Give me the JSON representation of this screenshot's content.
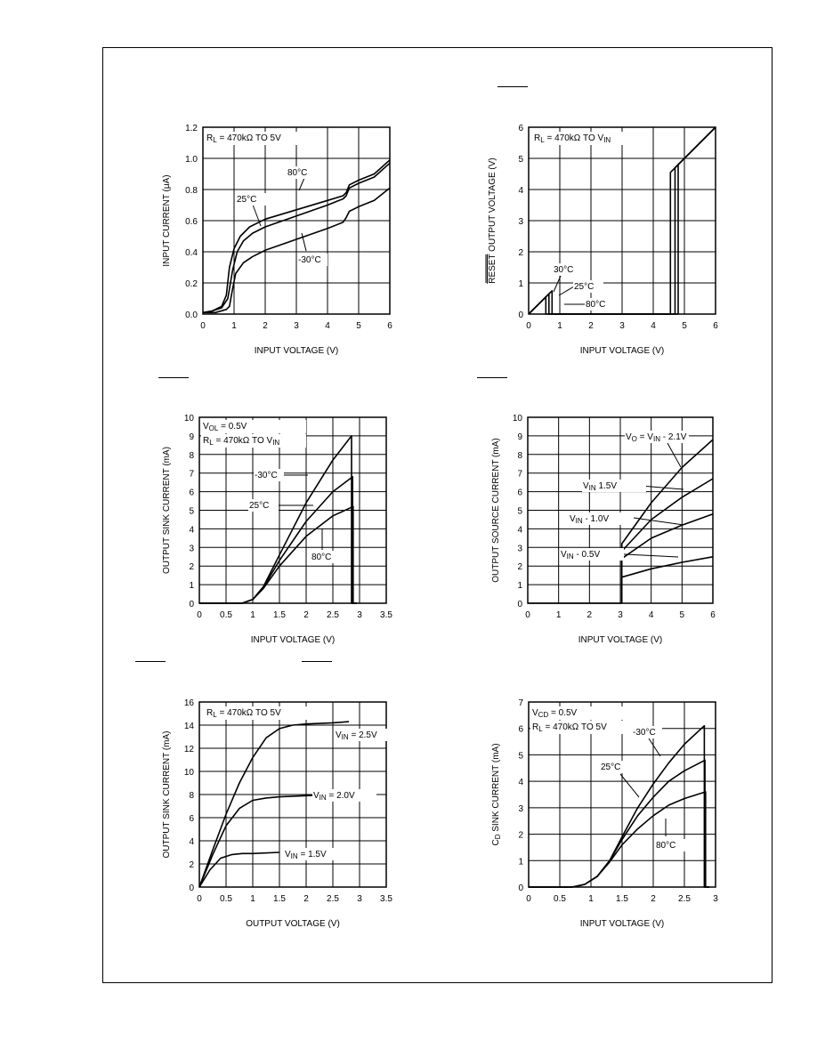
{
  "chart_data": [
    {
      "type": "line",
      "annotation": [
        "R",
        "L",
        " = 470kΩ TO 5V"
      ],
      "xlabel": "INPUT VOLTAGE (V)",
      "ylabel": "INPUT CURRENT (μA)",
      "xlim": [
        0,
        6
      ],
      "ylim": [
        0,
        1.2
      ],
      "xticks": [
        "0",
        "1",
        "2",
        "3",
        "4",
        "5",
        "6"
      ],
      "yticks": [
        "0.0",
        "0.2",
        "0.4",
        "0.6",
        "0.8",
        "1.0",
        "1.2"
      ],
      "grid": true,
      "series": [
        {
          "name": "25°C",
          "x": [
            0,
            0.3,
            0.6,
            0.75,
            0.85,
            1.0,
            1.2,
            1.5,
            2.0,
            3.0,
            4.0,
            4.5,
            4.6,
            4.7,
            5.0,
            5.5,
            6.0
          ],
          "y": [
            0.01,
            0.02,
            0.05,
            0.12,
            0.3,
            0.42,
            0.5,
            0.56,
            0.61,
            0.67,
            0.73,
            0.76,
            0.78,
            0.83,
            0.86,
            0.9,
            0.99
          ]
        },
        {
          "name": "80°C",
          "x": [
            0,
            0.3,
            0.6,
            0.8,
            0.95,
            1.1,
            1.3,
            1.6,
            2.0,
            3.0,
            4.0,
            4.5,
            4.6,
            4.7,
            5.0,
            5.5,
            6.0
          ],
          "y": [
            0.01,
            0.02,
            0.04,
            0.1,
            0.28,
            0.4,
            0.47,
            0.52,
            0.56,
            0.63,
            0.7,
            0.74,
            0.76,
            0.81,
            0.84,
            0.88,
            0.97
          ]
        },
        {
          "name": "-30°C",
          "x": [
            0,
            0.4,
            0.75,
            0.85,
            0.95,
            1.05,
            1.3,
            1.6,
            2.0,
            3.0,
            4.0,
            4.5,
            4.6,
            4.7,
            5.0,
            5.5,
            6.0
          ],
          "y": [
            0.01,
            0.01,
            0.03,
            0.05,
            0.16,
            0.26,
            0.33,
            0.37,
            0.41,
            0.48,
            0.55,
            0.59,
            0.62,
            0.66,
            0.69,
            0.73,
            0.81
          ]
        }
      ],
      "labels": [
        "80°C",
        "25°C",
        "-30°C"
      ]
    },
    {
      "type": "line",
      "annotation": [
        "R",
        "L",
        " = 470kΩ TO V",
        "IN"
      ],
      "xlabel": "INPUT VOLTAGE (V)",
      "ylabel": "RESET OUTPUT VOLTAGE (V)",
      "xlim": [
        0,
        6
      ],
      "ylim": [
        0,
        6
      ],
      "xticks": [
        "0",
        "1",
        "2",
        "3",
        "4",
        "5",
        "6"
      ],
      "yticks": [
        "0",
        "1",
        "2",
        "3",
        "4",
        "5",
        "6"
      ],
      "grid": true,
      "series": [
        {
          "name": "30°C",
          "x": [
            0,
            0.55,
            0.55,
            4.55,
            4.55,
            6
          ],
          "y": [
            0,
            0.55,
            0,
            0,
            4.55,
            6
          ]
        },
        {
          "name": "25°C",
          "x": [
            0,
            0.65,
            0.65,
            4.7,
            4.7,
            6
          ],
          "y": [
            0,
            0.65,
            0,
            0,
            4.7,
            6
          ]
        },
        {
          "name": "80°C",
          "x": [
            0,
            0.75,
            0.75,
            4.8,
            4.8,
            6
          ],
          "y": [
            0,
            0.75,
            0,
            0,
            4.8,
            6
          ]
        }
      ],
      "labels": [
        "30°C",
        "25°C",
        "80°C"
      ]
    },
    {
      "type": "line",
      "annotation": [
        "V",
        "OL",
        " = 0.5V",
        "R",
        "L",
        " = 470kΩ TO V",
        "IN"
      ],
      "xlabel": "INPUT VOLTAGE (V)",
      "ylabel": "OUTPUT SINK CURRENT (mA)",
      "xlim": [
        0,
        3.5
      ],
      "ylim": [
        0,
        10
      ],
      "xticks": [
        "0",
        "0.5",
        "1",
        "1.5",
        "2",
        "2.5",
        "3",
        "3.5"
      ],
      "yticks": [
        "0",
        "1",
        "2",
        "3",
        "4",
        "5",
        "6",
        "7",
        "8",
        "9",
        "10"
      ],
      "grid": true,
      "series": [
        {
          "name": "-30°C",
          "x": [
            0,
            0.8,
            1.0,
            1.2,
            1.5,
            2.0,
            2.5,
            2.85,
            2.85,
            2.9
          ],
          "y": [
            0,
            0,
            0.2,
            0.9,
            2.6,
            5.4,
            7.7,
            9.0,
            0,
            0
          ]
        },
        {
          "name": "25°C",
          "x": [
            0,
            0.8,
            1.0,
            1.2,
            1.5,
            2.0,
            2.5,
            2.87,
            2.87,
            2.95
          ],
          "y": [
            0,
            0,
            0.2,
            0.85,
            2.3,
            4.4,
            6.0,
            6.8,
            0,
            0
          ]
        },
        {
          "name": "80°C",
          "x": [
            0,
            0.8,
            1.0,
            1.2,
            1.5,
            2.0,
            2.5,
            2.88,
            2.88,
            2.95
          ],
          "y": [
            0,
            0,
            0.2,
            0.8,
            2.0,
            3.6,
            4.7,
            5.2,
            0,
            0
          ]
        }
      ],
      "labels": [
        "-30°C",
        "25°C",
        "80°C"
      ]
    },
    {
      "type": "line",
      "annotation": [],
      "xlabel": "INPUT VOLTAGE (V)",
      "ylabel": "OUTPUT SOURCE CURRENT (mA)",
      "xlim": [
        0,
        6
      ],
      "ylim": [
        0,
        10
      ],
      "xticks": [
        "0",
        "1",
        "2",
        "3",
        "4",
        "5",
        "6"
      ],
      "yticks": [
        "0",
        "1",
        "2",
        "3",
        "4",
        "5",
        "6",
        "7",
        "8",
        "9",
        "10"
      ],
      "grid": true,
      "series": [
        {
          "name": "VO = VIN - 2.1V",
          "x": [
            0,
            3.05,
            3.05,
            4,
            5,
            6
          ],
          "y": [
            0,
            0,
            3.2,
            5.4,
            7.3,
            8.8
          ]
        },
        {
          "name": "VIN - 1.5V",
          "x": [
            3.05,
            3.05,
            4,
            5,
            6
          ],
          "y": [
            0,
            2.8,
            4.5,
            5.7,
            6.7
          ]
        },
        {
          "name": "VIN - 1.0V",
          "x": [
            3.05,
            3.05,
            4,
            5,
            6
          ],
          "y": [
            0,
            2.4,
            3.5,
            4.2,
            4.8
          ]
        },
        {
          "name": "VIN - 0.5V",
          "x": [
            3.05,
            3.05,
            4,
            5,
            6
          ],
          "y": [
            0,
            1.4,
            1.85,
            2.2,
            2.5
          ]
        }
      ],
      "labels": [
        [
          "V",
          "O",
          " = V",
          "IN",
          " - 2.1V"
        ],
        [
          "V",
          "IN",
          "  1.5V"
        ],
        [
          "V",
          "IN",
          " - 1.0V"
        ],
        [
          "V",
          "IN",
          " - 0.5V"
        ]
      ]
    },
    {
      "type": "line",
      "annotation": [
        "R",
        "L",
        " = 470kΩ TO 5V"
      ],
      "xlabel": "OUTPUT VOLTAGE (V)",
      "ylabel": "OUTPUT SINK CURRENT (mA)",
      "xlim": [
        0,
        3.5
      ],
      "ylim": [
        0,
        16
      ],
      "xticks": [
        "0",
        "0.5",
        "1",
        "1.5",
        "2",
        "2.5",
        "3",
        "3.5"
      ],
      "yticks": [
        "0",
        "2",
        "4",
        "6",
        "8",
        "10",
        "12",
        "14",
        "16"
      ],
      "grid": true,
      "series": [
        {
          "name": "VIN = 2.5V",
          "x": [
            0,
            0.25,
            0.5,
            0.75,
            1.0,
            1.25,
            1.5,
            1.75,
            2.0,
            2.5,
            2.8
          ],
          "y": [
            0,
            3.2,
            6.3,
            9.0,
            11.2,
            12.9,
            13.7,
            14.0,
            14.1,
            14.2,
            14.3
          ]
        },
        {
          "name": "VIN = 2.0V",
          "x": [
            0,
            0.25,
            0.5,
            0.75,
            1.0,
            1.25,
            1.5,
            2.0,
            2.5
          ],
          "y": [
            0,
            2.8,
            5.3,
            6.8,
            7.5,
            7.7,
            7.8,
            7.9,
            8.0
          ]
        },
        {
          "name": "VIN = 1.5V",
          "x": [
            0,
            0.2,
            0.4,
            0.6,
            0.8,
            1.0,
            1.5
          ],
          "y": [
            0,
            1.5,
            2.5,
            2.8,
            2.9,
            2.9,
            3.0
          ]
        }
      ],
      "labels": [
        [
          "V",
          "IN",
          " = 2.5V"
        ],
        [
          "V",
          "IN",
          " = 2.0V"
        ],
        [
          "V",
          "IN",
          " = 1.5V"
        ]
      ]
    },
    {
      "type": "line",
      "annotation": [
        "V",
        "CD",
        " = 0.5V",
        "R",
        "L",
        " = 470kΩ TO 5V"
      ],
      "xlabel": "INPUT VOLTAGE (V)",
      "ylabel": "CD SINK CURRENT (mA)",
      "xlim": [
        0,
        3
      ],
      "ylim": [
        0,
        7
      ],
      "xticks": [
        "0",
        "0.5",
        "1",
        "1.5",
        "2",
        "2.5",
        "3"
      ],
      "yticks": [
        "0",
        "1",
        "2",
        "3",
        "4",
        "5",
        "6",
        "7"
      ],
      "grid": true,
      "series": [
        {
          "name": "-30°C",
          "x": [
            0,
            0.7,
            0.9,
            1.1,
            1.3,
            1.5,
            1.75,
            2.0,
            2.25,
            2.5,
            2.82,
            2.82,
            2.9
          ],
          "y": [
            0,
            0,
            0.1,
            0.4,
            1.0,
            1.9,
            3.0,
            3.9,
            4.7,
            5.4,
            6.1,
            0,
            0
          ]
        },
        {
          "name": "25°C",
          "x": [
            0,
            0.7,
            0.9,
            1.1,
            1.3,
            1.5,
            1.75,
            2.0,
            2.25,
            2.5,
            2.83,
            2.83,
            2.9
          ],
          "y": [
            0,
            0,
            0.1,
            0.4,
            1.0,
            1.8,
            2.7,
            3.4,
            4.0,
            4.4,
            4.8,
            0,
            0
          ]
        },
        {
          "name": "80°C",
          "x": [
            0,
            0.7,
            0.9,
            1.1,
            1.3,
            1.5,
            1.75,
            2.0,
            2.25,
            2.5,
            2.84,
            2.84,
            2.9
          ],
          "y": [
            0,
            0,
            0.1,
            0.4,
            0.95,
            1.6,
            2.2,
            2.7,
            3.1,
            3.35,
            3.6,
            0,
            0
          ]
        }
      ],
      "labels": [
        "-30°C",
        "25°C",
        "80°C"
      ]
    }
  ]
}
